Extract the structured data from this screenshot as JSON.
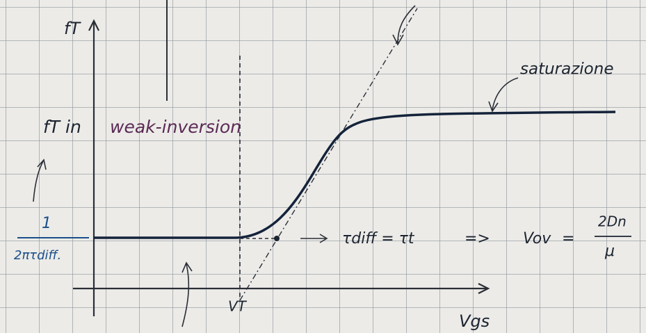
{
  "diagram": {
    "y_axis_label": "fT",
    "x_axis_label": "Vgs",
    "threshold_label": "VT",
    "weak_inversion_prefix": "fT in",
    "weak_inversion_label": "weak-inversion",
    "saturation_label": "saturazione",
    "fraction_numerator": "1",
    "fraction_denominator": "2πτdiff.",
    "equation": {
      "relation": "τdiff = τt",
      "implies": "=>",
      "lhs": "Vov",
      "equals": "=",
      "numerator": "2Dn",
      "denominator": "μ"
    }
  }
}
